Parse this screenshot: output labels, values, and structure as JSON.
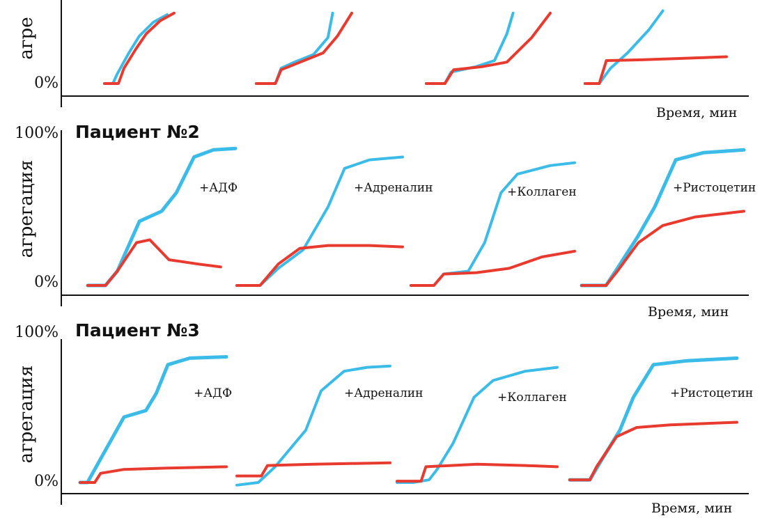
{
  "chart_data": [
    {
      "type": "line",
      "title": "",
      "ylabel": "агре",
      "xlabel": "Время, мин",
      "yticks": [
        "0%"
      ],
      "ylim": [
        0,
        100
      ],
      "panels": [
        {
          "label": "",
          "series": [
            {
              "color": "#3bbbe8",
              "x": [
                0,
                0.12,
                0.18,
                0.35,
                0.5,
                0.7,
                0.9
              ],
              "y": [
                0,
                0,
                12,
                40,
                62,
                80,
                90
              ]
            },
            {
              "color": "#e83a2e",
              "x": [
                0,
                0.2,
                0.28,
                0.45,
                0.6,
                0.8,
                1.0
              ],
              "y": [
                0,
                0,
                20,
                45,
                65,
                82,
                92
              ]
            }
          ]
        },
        {
          "label": "",
          "series": [
            {
              "color": "#3bbbe8",
              "x": [
                0,
                0.2,
                0.26,
                0.4,
                0.6,
                0.75,
                0.8
              ],
              "y": [
                0,
                0,
                20,
                28,
                38,
                60,
                92
              ]
            },
            {
              "color": "#e83a2e",
              "x": [
                0,
                0.2,
                0.26,
                0.5,
                0.7,
                0.85,
                1.0
              ],
              "y": [
                0,
                0,
                18,
                30,
                40,
                62,
                92
              ]
            }
          ]
        },
        {
          "label": "",
          "series": [
            {
              "color": "#3bbbe8",
              "x": [
                0,
                0.15,
                0.2,
                0.4,
                0.55,
                0.65,
                0.7
              ],
              "y": [
                0,
                0,
                15,
                22,
                30,
                65,
                92
              ]
            },
            {
              "color": "#e83a2e",
              "x": [
                0,
                0.15,
                0.22,
                0.45,
                0.65,
                0.85,
                1.0
              ],
              "y": [
                0,
                0,
                18,
                22,
                28,
                60,
                92
              ]
            }
          ]
        },
        {
          "label": "",
          "series": [
            {
              "color": "#3bbbe8",
              "x": [
                0,
                0.1,
                0.18,
                0.3,
                0.45,
                0.55
              ],
              "y": [
                0,
                0,
                20,
                40,
                70,
                95
              ]
            },
            {
              "color": "#e83a2e",
              "x": [
                0,
                0.1,
                0.15,
                0.4,
                0.7,
                1.0
              ],
              "y": [
                0,
                0,
                30,
                31,
                33,
                35
              ]
            }
          ]
        }
      ]
    },
    {
      "type": "line",
      "title": "Пациент №2",
      "ylabel": "агрегация",
      "xlabel": "Время, мин",
      "yticks": [
        "100%",
        "0%"
      ],
      "ylim": [
        0,
        100
      ],
      "panels": [
        {
          "label": "+АДФ",
          "series": [
            {
              "color": "#3bbbe8",
              "x": [
                0,
                0.12,
                0.2,
                0.35,
                0.5,
                0.6,
                0.72,
                0.85,
                1.0
              ],
              "y": [
                0,
                0,
                10,
                45,
                52,
                65,
                90,
                95,
                96
              ]
            },
            {
              "color": "#e83a2e",
              "x": [
                0,
                0.12,
                0.2,
                0.33,
                0.42,
                0.55,
                0.75,
                0.9
              ],
              "y": [
                0,
                0,
                10,
                30,
                32,
                18,
                15,
                13
              ]
            }
          ]
        },
        {
          "label": "+Адреналин",
          "series": [
            {
              "color": "#3bbbe8",
              "x": [
                0,
                0.14,
                0.25,
                0.4,
                0.55,
                0.65,
                0.8,
                1.0
              ],
              "y": [
                0,
                0,
                12,
                25,
                55,
                82,
                88,
                90
              ]
            },
            {
              "color": "#e83a2e",
              "x": [
                0,
                0.14,
                0.25,
                0.38,
                0.55,
                0.8,
                1.0
              ],
              "y": [
                0,
                0,
                15,
                26,
                28,
                28,
                27
              ]
            }
          ]
        },
        {
          "label": "+Коллаген",
          "series": [
            {
              "color": "#3bbbe8",
              "x": [
                0,
                0.14,
                0.2,
                0.35,
                0.45,
                0.55,
                0.65,
                0.85,
                1.0
              ],
              "y": [
                0,
                0,
                8,
                10,
                30,
                65,
                78,
                84,
                86
              ]
            },
            {
              "color": "#e83a2e",
              "x": [
                0,
                0.14,
                0.2,
                0.4,
                0.6,
                0.8,
                1.0
              ],
              "y": [
                0,
                0,
                8,
                9,
                12,
                20,
                24
              ]
            }
          ]
        },
        {
          "label": "+Ристоцетин",
          "series": [
            {
              "color": "#3bbbe8",
              "x": [
                0,
                0.15,
                0.22,
                0.35,
                0.45,
                0.58,
                0.75,
                1.0
              ],
              "y": [
                0,
                0,
                12,
                35,
                55,
                88,
                93,
                95
              ]
            },
            {
              "color": "#e83a2e",
              "x": [
                0,
                0.15,
                0.22,
                0.35,
                0.5,
                0.7,
                1.0
              ],
              "y": [
                0,
                0,
                10,
                30,
                42,
                48,
                52
              ]
            }
          ]
        }
      ]
    },
    {
      "type": "line",
      "title": "Пациент №3",
      "ylabel": "агрегация",
      "xlabel": "Время, мин",
      "yticks": [
        "100%",
        "0%"
      ],
      "ylim": [
        0,
        100
      ],
      "panels": [
        {
          "label": "+АДФ",
          "series": [
            {
              "color": "#3bbbe8",
              "x": [
                0,
                0.05,
                0.15,
                0.3,
                0.45,
                0.52,
                0.6,
                0.75,
                1.0
              ],
              "y": [
                0,
                0,
                20,
                50,
                55,
                68,
                90,
                95,
                96
              ]
            },
            {
              "color": "#e83a2e",
              "x": [
                0,
                0.1,
                0.14,
                0.3,
                0.6,
                1.0
              ],
              "y": [
                0,
                0,
                7,
                10,
                11,
                12
              ]
            }
          ]
        },
        {
          "label": "+Адреналин",
          "series": [
            {
              "color": "#3bbbe8",
              "x": [
                0,
                0.14,
                0.25,
                0.45,
                0.55,
                0.7,
                0.85,
                1.0
              ],
              "y": [
                -2,
                0,
                12,
                40,
                70,
                85,
                88,
                89
              ]
            },
            {
              "color": "#e83a2e",
              "x": [
                0,
                0.16,
                0.2,
                0.5,
                1.0
              ],
              "y": [
                5,
                5,
                13,
                14,
                15
              ]
            }
          ]
        },
        {
          "label": "+Коллаген",
          "series": [
            {
              "color": "#3bbbe8",
              "x": [
                0,
                0.1,
                0.2,
                0.25,
                0.35,
                0.48,
                0.6,
                0.8,
                1.0
              ],
              "y": [
                0,
                0,
                2,
                10,
                30,
                65,
                78,
                85,
                88
              ]
            },
            {
              "color": "#e83a2e",
              "x": [
                0,
                0.15,
                0.18,
                0.5,
                0.8,
                1.0
              ],
              "y": [
                1,
                1,
                12,
                14,
                13,
                12
              ]
            }
          ]
        },
        {
          "label": "+Ристоцетин",
          "series": [
            {
              "color": "#3bbbe8",
              "x": [
                0,
                0.12,
                0.18,
                0.3,
                0.38,
                0.5,
                0.7,
                1.0
              ],
              "y": [
                2,
                2,
                15,
                40,
                65,
                90,
                93,
                95
              ]
            },
            {
              "color": "#e83a2e",
              "x": [
                0,
                0.12,
                0.16,
                0.28,
                0.4,
                0.6,
                1.0
              ],
              "y": [
                2,
                2,
                12,
                35,
                42,
                44,
                46
              ]
            }
          ]
        }
      ]
    }
  ]
}
